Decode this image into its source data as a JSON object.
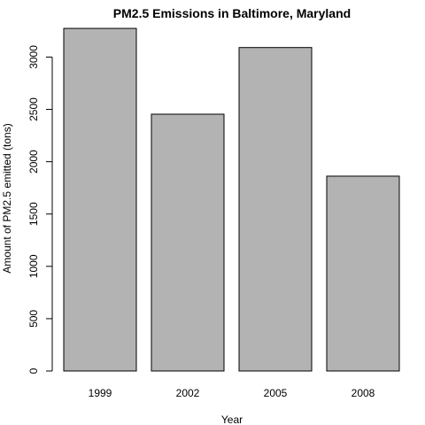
{
  "chart_data": {
    "type": "bar",
    "title": "PM2.5 Emissions in Baltimore, Maryland",
    "xlabel": "Year",
    "ylabel": "Amount of PM2.5 emitted (tons)",
    "categories": [
      "1999",
      "2002",
      "2005",
      "2008"
    ],
    "values": [
      3274,
      2454,
      3091,
      1862
    ],
    "ylim": [
      0,
      3300
    ],
    "yticks": [
      0,
      500,
      1000,
      1500,
      2000,
      2500,
      3000
    ],
    "bar_color": "#b3b3b3",
    "grid": false,
    "legend": "none"
  }
}
